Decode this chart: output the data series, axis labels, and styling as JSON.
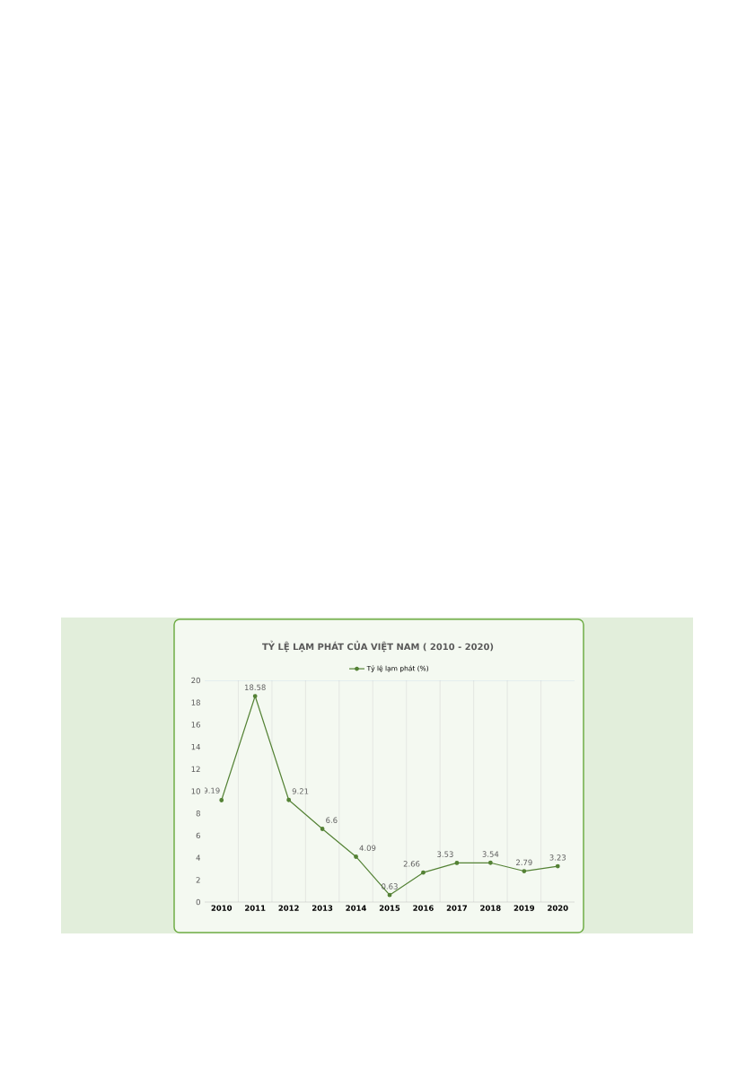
{
  "chart_data": {
    "type": "line",
    "title": "TỶ LỆ LẠM PHÁT CỦA VIỆT NAM ( 2010 - 2020)",
    "categories": [
      "2010",
      "2011",
      "2012",
      "2013",
      "2014",
      "2015",
      "2016",
      "2017",
      "2018",
      "2019",
      "2020"
    ],
    "series": [
      {
        "name": "Tỷ lệ lạm phát (%)",
        "color": "#548235",
        "values": [
          9.19,
          18.58,
          9.21,
          6.6,
          4.09,
          0.63,
          2.66,
          3.53,
          3.54,
          2.79,
          3.23
        ]
      }
    ],
    "ylim": [
      0,
      20
    ],
    "yticks": [
      0,
      2,
      4,
      6,
      8,
      10,
      12,
      14,
      16,
      18,
      20
    ],
    "grid": "x",
    "legend": "top",
    "marker": "circle",
    "line_style": "solid",
    "data_labels": true
  }
}
